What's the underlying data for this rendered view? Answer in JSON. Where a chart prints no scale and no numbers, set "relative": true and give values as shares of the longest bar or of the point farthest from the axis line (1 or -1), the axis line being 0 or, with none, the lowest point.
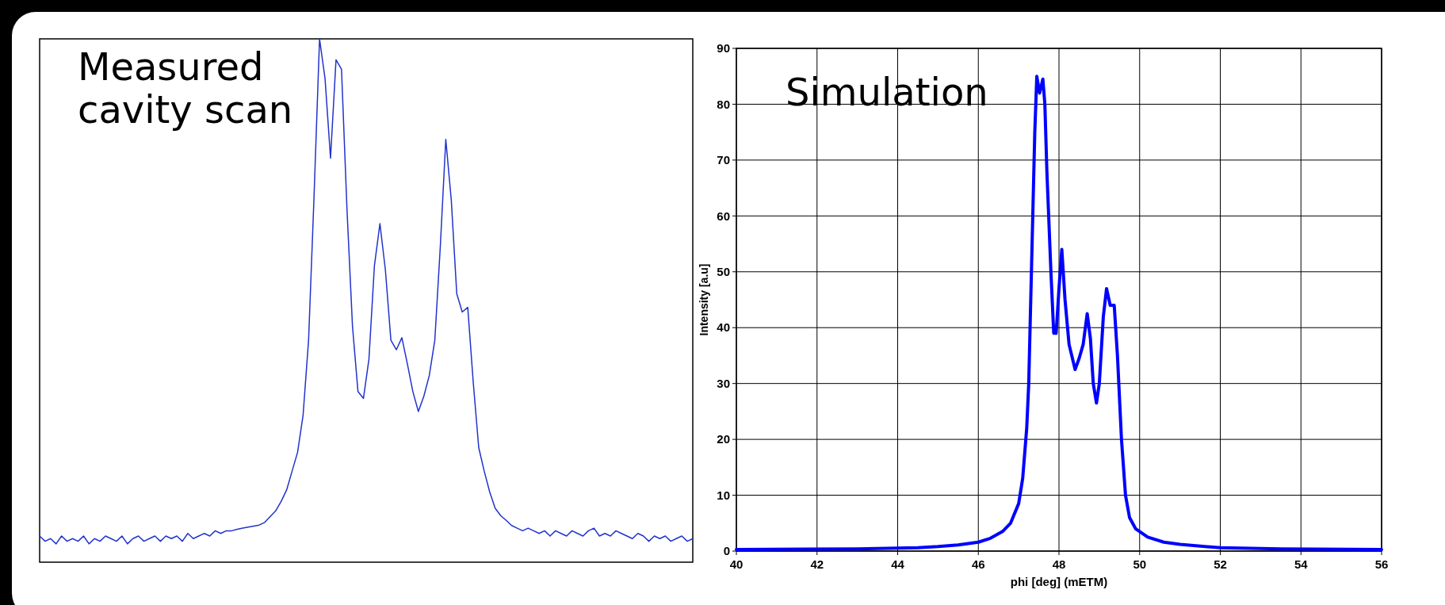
{
  "chart_data": [
    {
      "type": "line",
      "title": "Measured cavity scan",
      "relative": true,
      "grid": false,
      "categories": [
        null,
        null,
        null,
        null,
        null,
        null,
        null,
        null,
        null,
        null,
        null,
        null,
        null,
        null,
        null,
        null,
        null,
        null,
        null,
        null,
        null,
        null,
        null,
        null,
        null,
        null,
        null,
        null,
        null,
        null,
        null,
        null,
        null,
        null,
        null,
        null,
        null,
        null,
        null,
        null,
        null,
        null,
        null,
        null,
        null,
        null,
        null,
        null,
        null,
        null,
        null,
        null,
        null,
        null,
        null,
        null,
        null,
        null,
        null,
        null,
        null,
        null,
        null,
        null,
        null,
        null,
        null,
        null,
        null,
        null,
        null,
        null,
        null,
        null,
        null,
        null,
        null,
        null,
        null,
        null,
        null,
        null,
        null,
        null,
        null,
        null,
        null,
        null,
        null,
        null,
        null,
        null,
        null,
        null,
        null,
        null,
        null,
        null,
        null,
        null,
        null,
        null,
        null,
        null,
        null,
        null,
        null,
        null,
        null,
        null,
        null,
        null,
        null,
        null,
        null,
        null,
        null,
        null,
        null,
        null
      ],
      "series": [
        {
          "color": "#2233cc",
          "values": [
            0.05,
            0.04,
            0.045,
            0.035,
            0.05,
            0.04,
            0.045,
            0.04,
            0.05,
            0.035,
            0.045,
            0.04,
            0.05,
            0.045,
            0.04,
            0.05,
            0.035,
            0.045,
            0.05,
            0.04,
            0.045,
            0.05,
            0.04,
            0.05,
            0.045,
            0.05,
            0.04,
            0.055,
            0.045,
            0.05,
            0.055,
            0.05,
            0.06,
            0.055,
            0.06,
            0.06,
            0.063,
            0.065,
            0.067,
            0.069,
            0.071,
            0.076,
            0.087,
            0.098,
            0.116,
            0.138,
            0.174,
            0.21,
            0.281,
            0.424,
            0.7,
            1,
            0.924,
            0.772,
            0.96,
            0.942,
            0.674,
            0.451,
            0.326,
            0.313,
            0.388,
            0.567,
            0.647,
            0.558,
            0.424,
            0.406,
            0.429,
            0.379,
            0.326,
            0.288,
            0.317,
            0.357,
            0.424,
            0.603,
            0.808,
            0.692,
            0.513,
            0.478,
            0.487,
            0.344,
            0.219,
            0.174,
            0.134,
            0.103,
            0.089,
            0.08,
            0.07,
            0.065,
            0.06,
            0.065,
            0.06,
            0.055,
            0.06,
            0.05,
            0.06,
            0.055,
            0.05,
            0.06,
            0.055,
            0.05,
            0.06,
            0.065,
            0.05,
            0.055,
            0.05,
            0.06,
            0.055,
            0.05,
            0.045,
            0.055,
            0.05,
            0.04,
            0.05,
            0.045,
            0.05,
            0.04,
            0.045,
            0.05,
            0.04,
            0.045
          ]
        }
      ]
    },
    {
      "type": "line",
      "title": "Simulation",
      "xlabel": "phi [deg] (mETM)",
      "ylabel": "Intensity [a.u]",
      "grid": true,
      "xlim": [
        40,
        56
      ],
      "xticks": [
        40,
        42,
        44,
        46,
        48,
        50,
        52,
        54,
        56
      ],
      "ylim": [
        0,
        90
      ],
      "yticks": [
        0,
        10,
        20,
        30,
        40,
        50,
        60,
        70,
        80,
        90
      ],
      "series": [
        {
          "color": "#0000ff",
          "x": [
            40,
            43,
            44.5,
            45,
            45.5,
            46,
            46.3,
            46.6,
            46.8,
            47,
            47.1,
            47.2,
            47.25,
            47.3,
            47.35,
            47.4,
            47.45,
            47.52,
            47.6,
            47.65,
            47.7,
            47.8,
            47.87,
            47.93,
            48,
            48.07,
            48.15,
            48.25,
            48.4,
            48.5,
            48.6,
            48.7,
            48.78,
            48.85,
            48.93,
            49,
            49.1,
            49.18,
            49.27,
            49.37,
            49.45,
            49.55,
            49.65,
            49.75,
            49.9,
            50.2,
            50.6,
            51,
            52,
            53.5,
            56
          ],
          "values": [
            0.3,
            0.4,
            0.6,
            0.8,
            1.1,
            1.6,
            2.3,
            3.5,
            5,
            8.5,
            13,
            22,
            30,
            45,
            60,
            75,
            85,
            82,
            84.5,
            80,
            68,
            50,
            39,
            39,
            47,
            54,
            45,
            37,
            32.5,
            34.5,
            37,
            42.5,
            38,
            30,
            26.5,
            30,
            42,
            47,
            44,
            44,
            35,
            20,
            10,
            6,
            4,
            2.5,
            1.6,
            1.2,
            0.6,
            0.4,
            0.3
          ]
        }
      ]
    }
  ]
}
